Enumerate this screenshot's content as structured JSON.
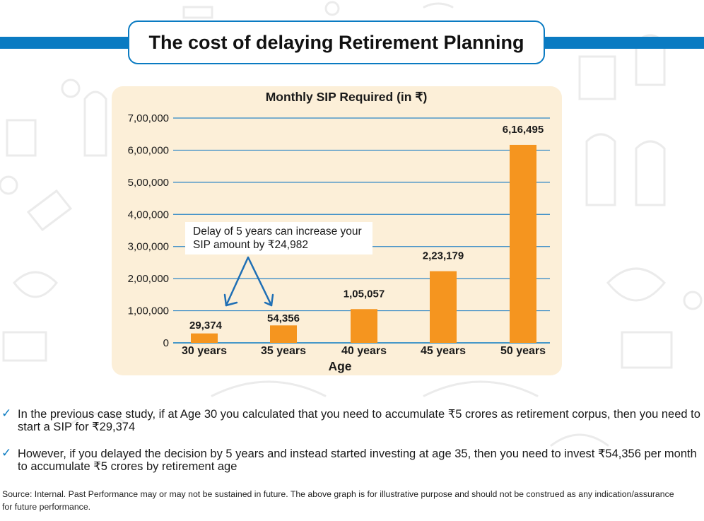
{
  "header": {
    "title": "The cost of delaying Retirement Planning"
  },
  "chart_data": {
    "type": "bar",
    "title": "Monthly SIP Required (in ₹)",
    "xlabel": "Age",
    "ylabel": "",
    "categories": [
      "30 years",
      "35 years",
      "40 years",
      "45 years",
      "50 years"
    ],
    "values": [
      29374,
      54356,
      105057,
      223179,
      616495
    ],
    "value_labels": [
      "29,374",
      "54,356",
      "1,05,057",
      "2,23,179",
      "6,16,495"
    ],
    "ylim": [
      0,
      700000
    ],
    "yticks": [
      0,
      100000,
      200000,
      300000,
      400000,
      500000,
      600000,
      700000
    ],
    "ytick_labels": [
      "0",
      "1,00,000",
      "2,00,000",
      "3,00,000",
      "4,00,000",
      "5,00,000",
      "6,00,000",
      "7,00,000"
    ],
    "grid": true,
    "legend": "none",
    "bar_color": "#f5951f",
    "annotation": {
      "line1": "Delay of 5 years can increase your",
      "line2": "SIP amount by ₹24,982",
      "points_to": [
        "30 years",
        "35 years"
      ]
    }
  },
  "bullets": [
    "In the previous case study, if at Age 30 you calculated that you need to accumulate ₹5 crores as retirement corpus, then you need to start a SIP for ₹29,374",
    "However, if you delayed the decision by 5 years and instead started investing at age 35, then you need to invest ₹54,356 per month to accumulate ₹5 crores by retirement age"
  ],
  "bullet_icon": "checkmark-icon",
  "source": "Source: Internal. Past Performance may or may not be sustained in future. The above graph is for illustrative purpose and should not be construed as any indication/assurance for future performance.",
  "colors": {
    "accent": "#0a7bc2",
    "bar": "#f5951f",
    "panel": "#fcefd8"
  }
}
